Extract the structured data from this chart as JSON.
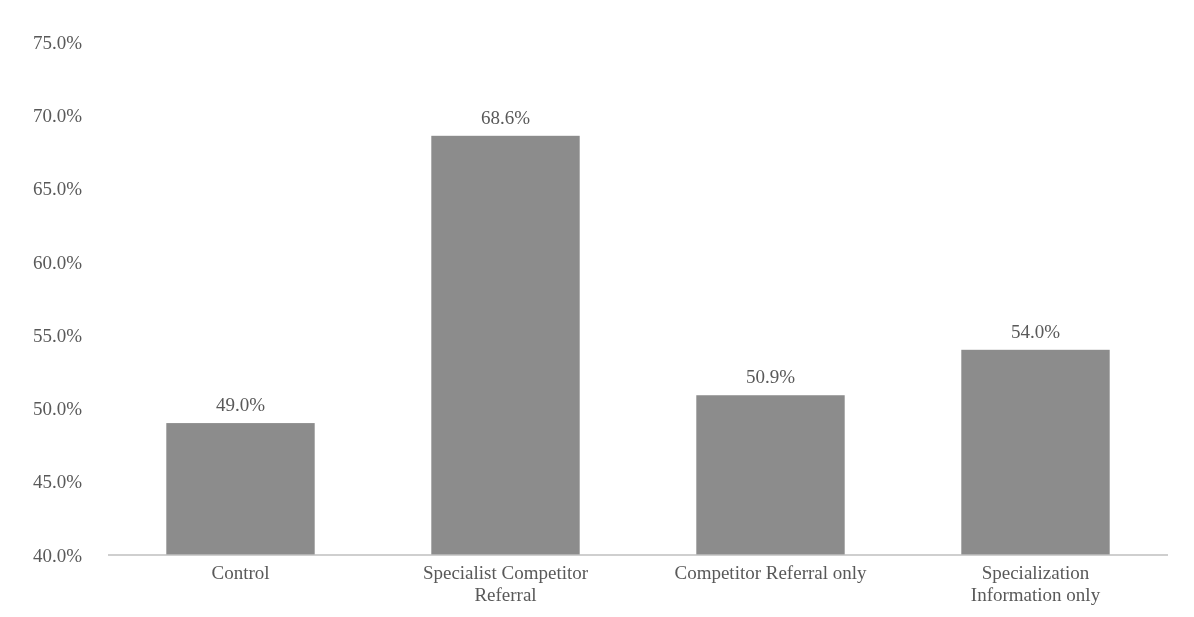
{
  "chart_data": {
    "type": "bar",
    "categories": [
      "Control",
      "Specialist Competitor Referral",
      "Competitor Referral only",
      "Specialization Information only"
    ],
    "values": [
      49.0,
      68.6,
      50.9,
      54.0
    ],
    "value_labels": [
      "49.0%",
      "68.6%",
      "50.9%",
      "54.0%"
    ],
    "color": "#8c8c8c",
    "ylim": [
      40,
      75
    ],
    "yticks": [
      {
        "value": 40,
        "label": "40.0%"
      },
      {
        "value": 45,
        "label": "45.0%"
      },
      {
        "value": 50,
        "label": "50.0%"
      },
      {
        "value": 55,
        "label": "55.0%"
      },
      {
        "value": 60,
        "label": "60.0%"
      },
      {
        "value": 65,
        "label": "65.0%"
      },
      {
        "value": 70,
        "label": "70.0%"
      },
      {
        "value": 75,
        "label": "75.0%"
      }
    ]
  }
}
